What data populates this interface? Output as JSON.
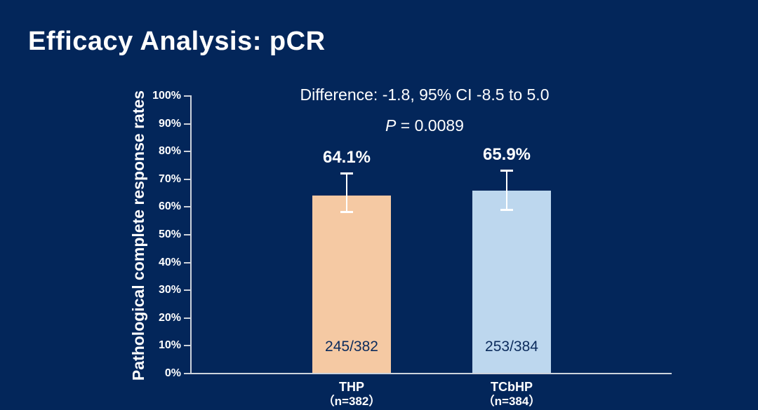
{
  "slide": {
    "title": "Efficacy Analysis: pCR"
  },
  "colors": {
    "background": "#03265A",
    "text": "#FFFFFF",
    "axis": "#CDD3DC",
    "error_bar": "#FFFFFF",
    "count_text": "#0B2B5C"
  },
  "chart_data": {
    "type": "bar",
    "title": "",
    "xlabel": "",
    "ylabel": "Pathological complete response rates",
    "ylim": [
      0,
      100
    ],
    "ytick_step": 10,
    "ytick_labels": [
      "0%",
      "10%",
      "20%",
      "30%",
      "40%",
      "50%",
      "60%",
      "70%",
      "80%",
      "90%",
      "100%"
    ],
    "grid": false,
    "legend": false,
    "categories": [
      "THP",
      "TCbHP"
    ],
    "category_sublabels": [
      "（n=382）",
      "（n=384）"
    ],
    "values": [
      64.1,
      65.9
    ],
    "value_labels": [
      "64.1%",
      "65.9%"
    ],
    "count_labels": [
      "245/382",
      "253/384"
    ],
    "bar_colors": [
      "#F5C9A3",
      "#BDD7EE"
    ],
    "error_bars": [
      {
        "upper": 72.2,
        "lower": 58.1
      },
      {
        "upper": 73.2,
        "lower": 58.8
      }
    ],
    "annotations": [
      {
        "italic_prefix": "",
        "text": "Difference: -1.8, 95% CI -8.5 to 5.0"
      },
      {
        "italic_prefix": "P",
        "text": " = 0.0089"
      }
    ]
  }
}
